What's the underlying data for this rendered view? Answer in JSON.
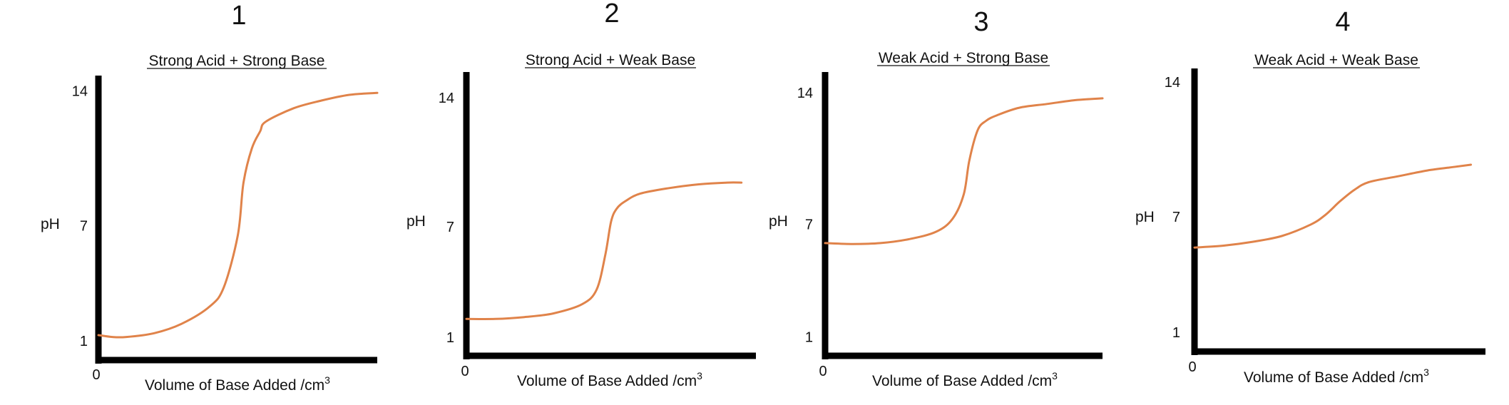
{
  "accent_color": "#E0834A",
  "axis_color": "#000000",
  "chart_data": [
    {
      "type": "line",
      "number": "1",
      "title": "Strong Acid + Strong Base",
      "xlabel": "Volume of Base Added /cm",
      "xlabel_sup": "3",
      "ylabel": "pH",
      "origin_label": "0",
      "ytick_labels": [
        "14",
        "7",
        "1"
      ],
      "yticks": [
        14,
        7,
        1
      ],
      "xlim": [
        0,
        10
      ],
      "ylim": [
        0,
        14.8
      ],
      "grid": false,
      "series": [
        {
          "x": [
            0,
            0.5,
            1,
            2,
            3,
            4,
            4.5,
            5,
            5.2,
            5.5,
            5.8,
            6,
            7,
            8,
            9,
            10
          ],
          "y": [
            1.3,
            1.2,
            1.2,
            1.4,
            1.9,
            2.8,
            3.8,
            6.5,
            9.2,
            11,
            11.9,
            12.4,
            13.1,
            13.5,
            13.8,
            13.9
          ]
        }
      ]
    },
    {
      "type": "line",
      "number": "2",
      "title": "Strong Acid + Weak Base",
      "xlabel": "Volume of Base Added /cm",
      "xlabel_sup": "3",
      "ylabel": "pH",
      "origin_label": "0",
      "ytick_labels": [
        "14",
        "7",
        "1"
      ],
      "yticks": [
        14,
        7,
        1
      ],
      "xlim": [
        0,
        10
      ],
      "ylim": [
        0,
        15.4
      ],
      "grid": false,
      "series": [
        {
          "x": [
            0,
            1,
            2,
            3,
            4,
            4.5,
            4.8,
            5,
            5.2,
            5.5,
            6,
            7,
            8,
            9,
            9.5
          ],
          "y": [
            2.0,
            2.0,
            2.1,
            2.3,
            2.8,
            3.6,
            5.5,
            7.3,
            8.0,
            8.4,
            8.8,
            9.1,
            9.3,
            9.4,
            9.4
          ]
        }
      ]
    },
    {
      "type": "line",
      "number": "3",
      "title": "Weak Acid + Strong Base",
      "xlabel": "Volume of Base Added /cm",
      "xlabel_sup": "3",
      "ylabel": "pH",
      "origin_label": "0",
      "ytick_labels": [
        "14",
        "7",
        "1"
      ],
      "yticks": [
        14,
        7,
        1
      ],
      "xlim": [
        0,
        10
      ],
      "ylim": [
        0,
        15.1
      ],
      "grid": false,
      "series": [
        {
          "x": [
            0,
            1,
            2,
            3,
            4,
            4.6,
            5,
            5.2,
            5.5,
            5.8,
            6.2,
            7,
            8,
            9,
            10
          ],
          "y": [
            6.0,
            5.95,
            6.0,
            6.2,
            6.6,
            7.3,
            8.6,
            10.4,
            12.0,
            12.5,
            12.8,
            13.2,
            13.4,
            13.6,
            13.7
          ]
        }
      ]
    },
    {
      "type": "line",
      "number": "4",
      "title": "Weak Acid + Weak Base",
      "xlabel": "Volume of Base Added /cm",
      "xlabel_sup": "3",
      "ylabel": "pH",
      "origin_label": "0",
      "ytick_labels": [
        "14",
        "7",
        "1"
      ],
      "yticks": [
        14,
        7,
        1
      ],
      "xlim": [
        0,
        10
      ],
      "ylim": [
        0,
        14.7
      ],
      "grid": false,
      "series": [
        {
          "x": [
            0,
            1,
            2,
            3,
            4,
            4.5,
            5,
            5.5,
            6,
            7,
            8,
            9,
            9.5
          ],
          "y": [
            5.4,
            5.5,
            5.7,
            6.0,
            6.6,
            7.1,
            7.8,
            8.4,
            8.8,
            9.1,
            9.4,
            9.6,
            9.7
          ]
        }
      ]
    }
  ]
}
